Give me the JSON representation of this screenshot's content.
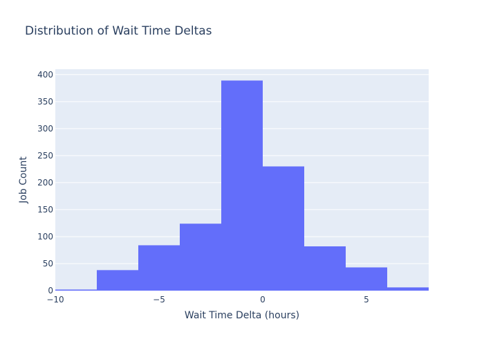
{
  "chart_data": {
    "type": "bar",
    "title": "Distribution of Wait Time Deltas",
    "xlabel": "Wait Time Delta (hours)",
    "ylabel": "Job Count",
    "xlim": [
      -10,
      8
    ],
    "ylim": [
      0,
      410
    ],
    "xticks": [
      -10,
      -5,
      0,
      5
    ],
    "xtick_labels": [
      "−10",
      "−5",
      "0",
      "5"
    ],
    "yticks": [
      0,
      50,
      100,
      150,
      200,
      250,
      300,
      350,
      400
    ],
    "bin_edges": [
      -10,
      -8,
      -6,
      -4,
      -2,
      0,
      2,
      4,
      6,
      8
    ],
    "values": [
      2,
      38,
      84,
      124,
      389,
      230,
      82,
      43,
      6
    ],
    "grid": true,
    "colors": {
      "bar": "#636efa",
      "plot_bg": "#e5ecf6",
      "grid": "#ffffff",
      "text": "#2a3f5f"
    }
  }
}
